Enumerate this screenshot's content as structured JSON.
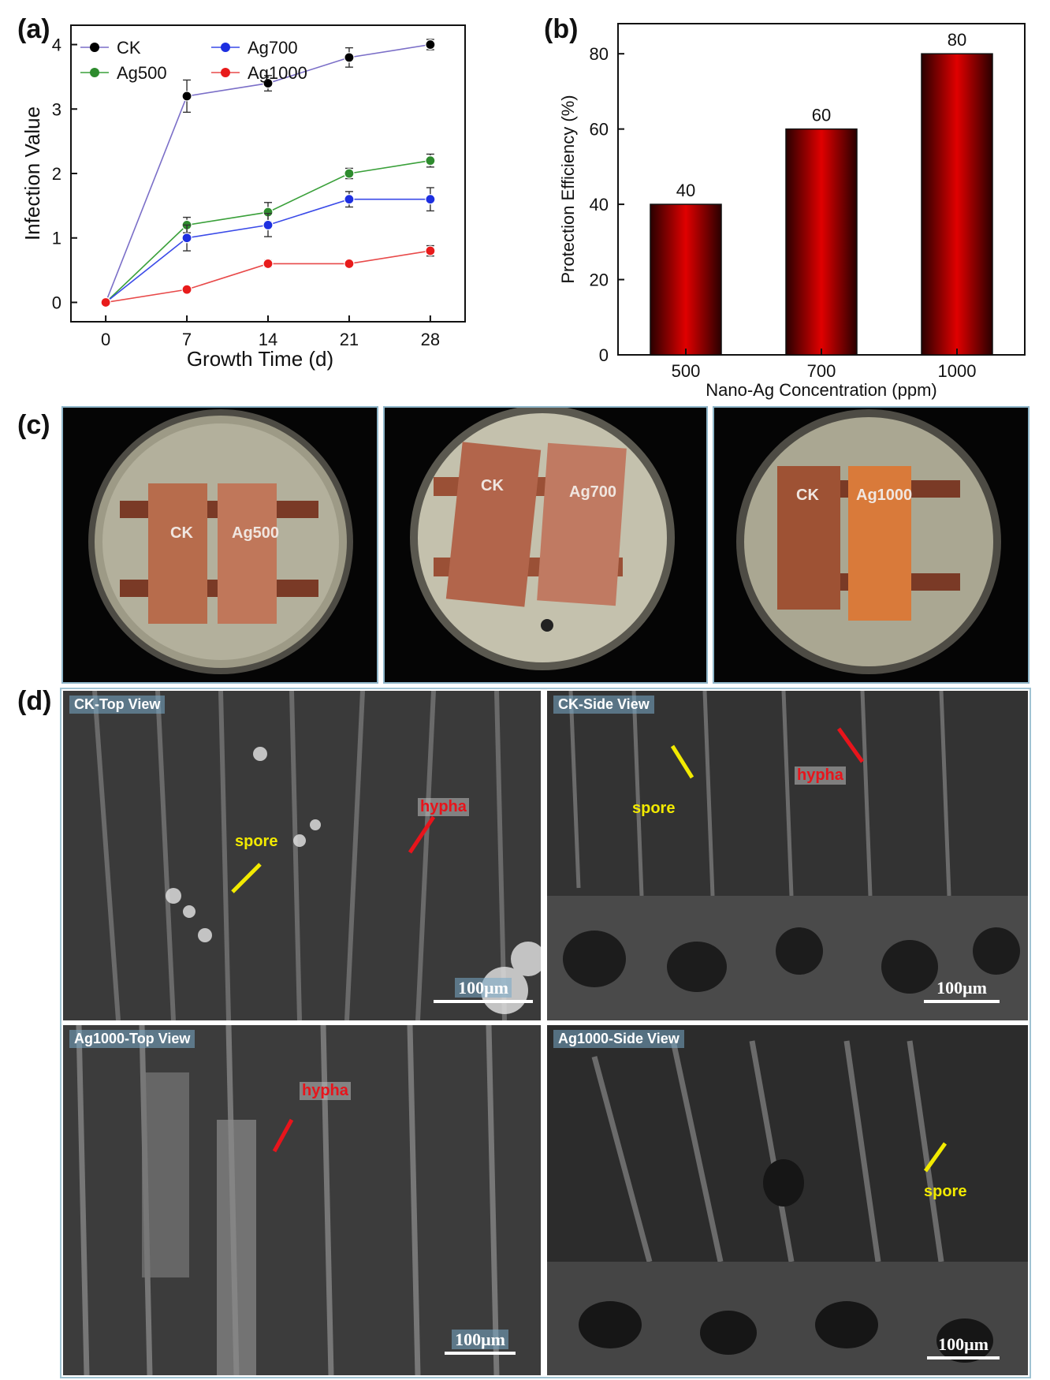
{
  "panels": {
    "a": "(a)",
    "b": "(b)",
    "c": "(c)",
    "d": "(d)"
  },
  "chart_data": [
    {
      "type": "line",
      "xlabel": "Growth Time (d)",
      "ylabel": "Infection Value",
      "x": [
        0,
        7,
        14,
        21,
        28
      ],
      "xlim": [
        -3,
        31
      ],
      "ylim": [
        -0.3,
        4.3
      ],
      "xticks": [
        "0",
        "7",
        "14",
        "21",
        "28"
      ],
      "yticks": [
        "0",
        "1",
        "2",
        "3",
        "4"
      ],
      "legend_position": "top-left",
      "series": [
        {
          "name": "CK",
          "color": "#000000",
          "line": "#7b6fc8",
          "values": [
            0,
            3.2,
            3.4,
            3.8,
            4.0
          ],
          "err": [
            0.02,
            0.25,
            0.12,
            0.15,
            0.08
          ]
        },
        {
          "name": "Ag500",
          "color": "#2e8b2e",
          "line": "#3aa03a",
          "values": [
            0,
            1.2,
            1.4,
            2.0,
            2.2
          ],
          "err": [
            0.02,
            0.12,
            0.15,
            0.08,
            0.1
          ]
        },
        {
          "name": "Ag700",
          "color": "#1d2fe0",
          "line": "#3a4ae8",
          "values": [
            0,
            1.0,
            1.2,
            1.6,
            1.6
          ],
          "err": [
            0.02,
            0.2,
            0.18,
            0.12,
            0.18
          ]
        },
        {
          "name": "Ag1000",
          "color": "#e81b1b",
          "line": "#e84a4a",
          "values": [
            0,
            0.2,
            0.6,
            0.6,
            0.8
          ],
          "err": [
            0.02,
            0.04,
            0.05,
            0.04,
            0.08
          ]
        }
      ]
    },
    {
      "type": "bar",
      "xlabel": "Nano-Ag Concentration (ppm)",
      "ylabel": "Protection Efficiency (%)",
      "categories": [
        "500",
        "700",
        "1000"
      ],
      "values": [
        40,
        60,
        80
      ],
      "data_labels": [
        "40",
        "60",
        "80"
      ],
      "ylim": [
        0,
        88
      ],
      "yticks": [
        "0",
        "20",
        "40",
        "60",
        "80"
      ],
      "color": "#e00000"
    }
  ],
  "photos": [
    {
      "left_label": "CK",
      "right_label": "Ag500"
    },
    {
      "left_label": "CK",
      "right_label": "Ag700"
    },
    {
      "left_label": "CK",
      "right_label": "Ag1000"
    }
  ],
  "sem": [
    {
      "title": "CK-Top View",
      "scale": "100μm",
      "annotations": [
        {
          "text": "hypha",
          "color": "red"
        },
        {
          "text": "spore",
          "color": "yellow"
        }
      ]
    },
    {
      "title": "CK-Side View",
      "scale": "100μm",
      "annotations": [
        {
          "text": "spore",
          "color": "yellow"
        },
        {
          "text": "hypha",
          "color": "red"
        }
      ]
    },
    {
      "title": "Ag1000-Top View",
      "scale": "100μm",
      "annotations": [
        {
          "text": "hypha",
          "color": "red"
        }
      ]
    },
    {
      "title": "Ag1000-Side View",
      "scale": "100μm",
      "annotations": [
        {
          "text": "spore",
          "color": "yellow"
        }
      ]
    }
  ]
}
